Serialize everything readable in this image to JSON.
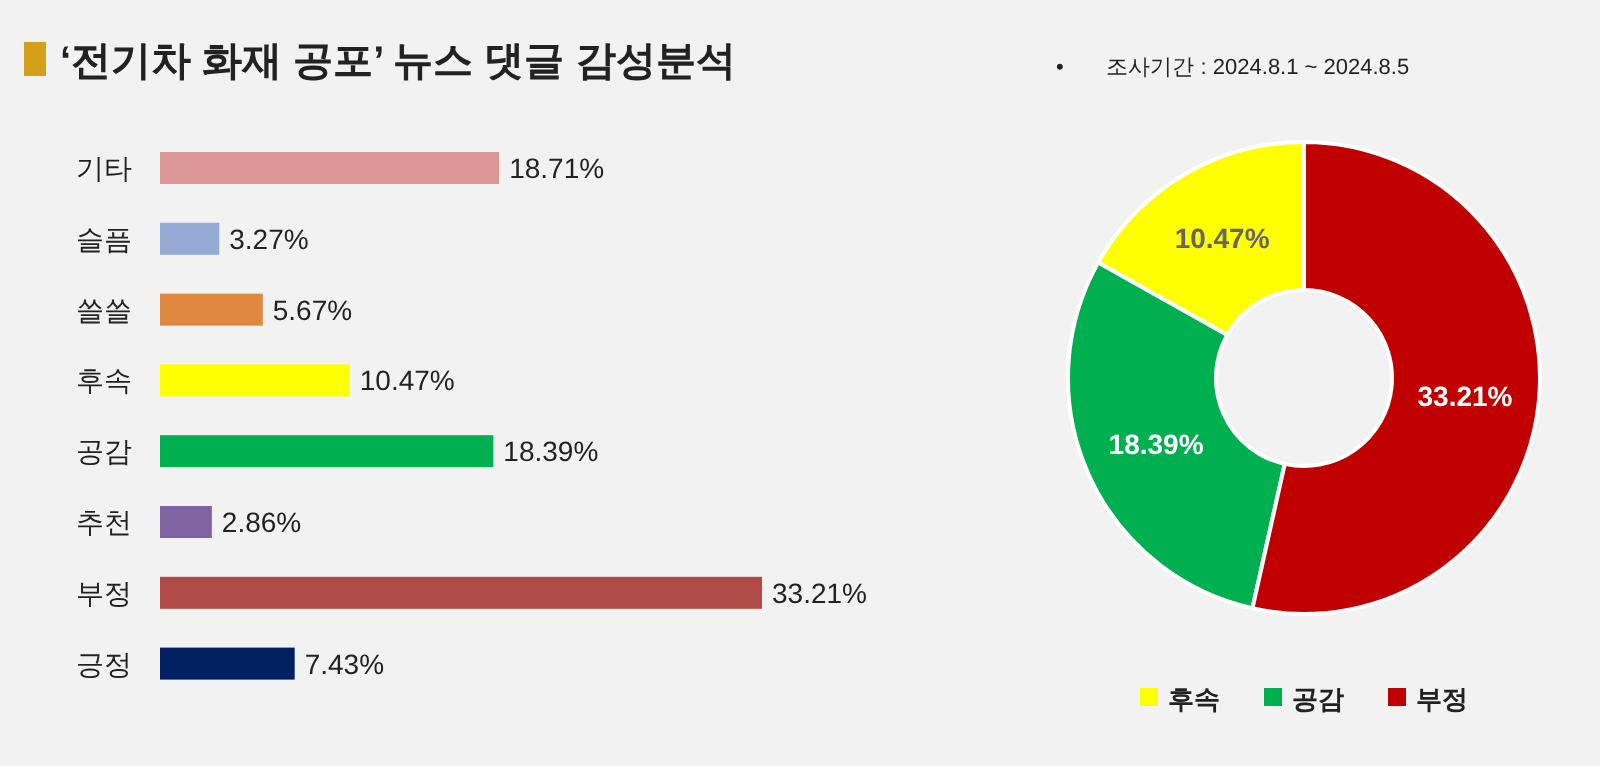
{
  "chart_data": [
    {
      "type": "bar",
      "orientation": "horizontal",
      "title": "‘전기차 화재 공포’ 뉴스 댓글 감성분석",
      "categories": [
        "기타",
        "슬픔",
        "쓸쓸",
        "후속",
        "공감",
        "추천",
        "부정",
        "긍정"
      ],
      "values": [
        18.71,
        3.27,
        5.67,
        10.47,
        18.39,
        2.86,
        33.21,
        7.43
      ],
      "colors": [
        "#d99694",
        "#95abd5",
        "#e0883f",
        "#ffff00",
        "#00b050",
        "#8064a2",
        "#b04a47",
        "#002060"
      ],
      "value_labels": [
        "18.71%",
        "3.27%",
        "5.67%",
        "10.47%",
        "18.39%",
        "2.86%",
        "33.21%",
        "7.43%"
      ],
      "legend": false
    },
    {
      "type": "donut",
      "categories": [
        "후속",
        "공감",
        "부정"
      ],
      "values": [
        10.47,
        18.39,
        33.21
      ],
      "colors": [
        "#ffff00",
        "#00b050",
        "#c00000"
      ],
      "value_labels": [
        "10.47%",
        "18.39%",
        "33.21%"
      ],
      "legend": "bottom",
      "annotations": [
        "•       조사기간 : 2024.8.1 ~ 2024.8.5"
      ]
    }
  ]
}
